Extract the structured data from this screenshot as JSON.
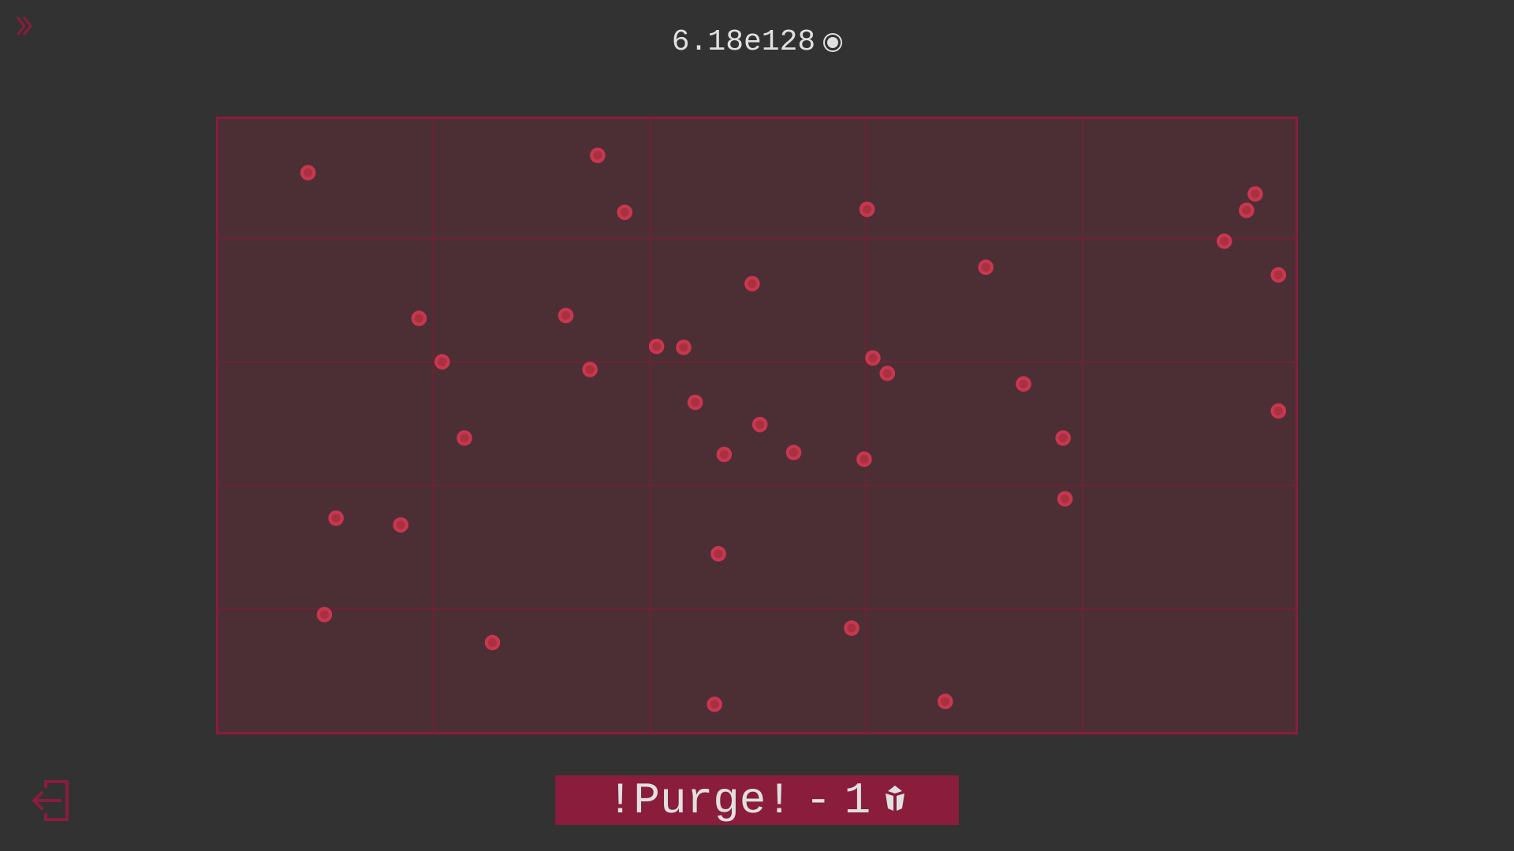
{
  "header": {
    "currency_value": "6.18e128",
    "currency_icon": "coin-circle-icon"
  },
  "purge_button": {
    "label": "!Purge!",
    "separator": "-",
    "cost": "1",
    "cost_icon": "gem-icon"
  },
  "icons": {
    "expand": "double-chevron-right-icon",
    "exit": "exit-door-icon"
  },
  "colors": {
    "background": "#323232",
    "accent": "#8a1c3c",
    "field": "#4c2f35",
    "dot": "#c8374f",
    "text": "#e0e0e0"
  }
}
